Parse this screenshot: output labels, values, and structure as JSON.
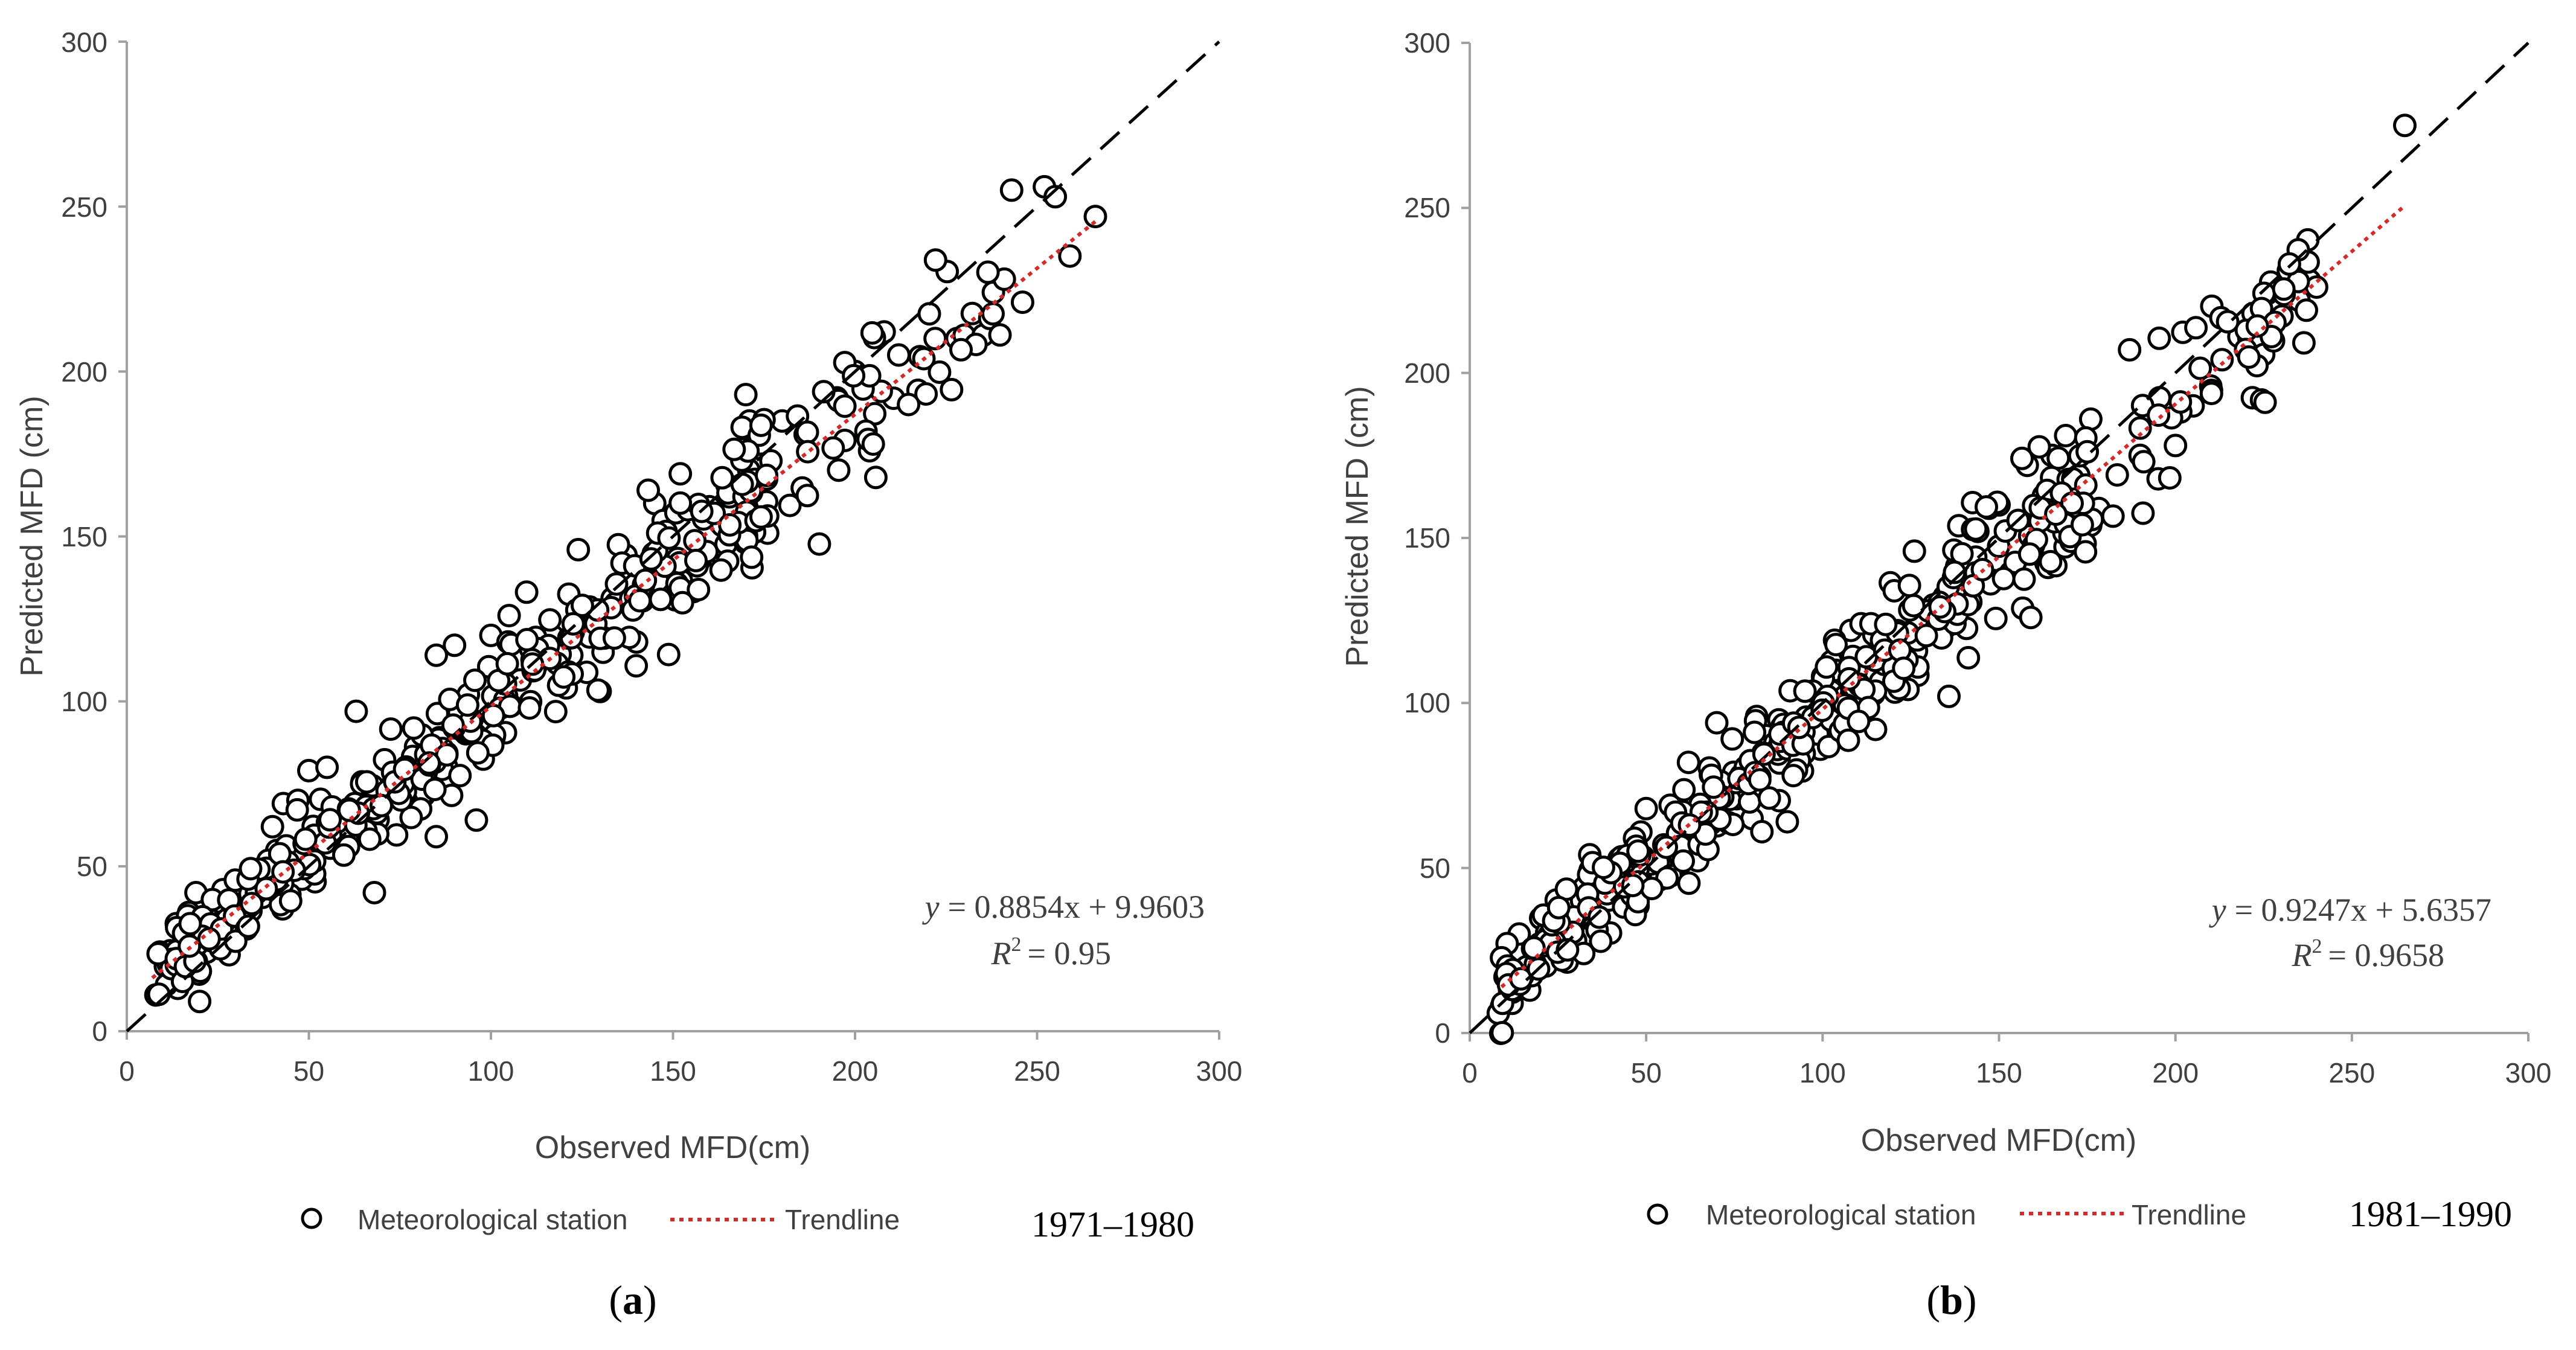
{
  "chart_data": [
    {
      "type": "scatter",
      "panel_label": "a",
      "xlabel": "Observed MFD(cm)",
      "ylabel": "Predicted MFD (cm)",
      "xlim": [
        0,
        300
      ],
      "ylim": [
        0,
        300
      ],
      "xticks": [
        "0",
        "50",
        "100",
        "150",
        "200",
        "250",
        "300"
      ],
      "yticks": [
        "0",
        "50",
        "100",
        "150",
        "200",
        "250",
        "300"
      ],
      "reference_line": {
        "slope": 1,
        "intercept": 0,
        "style": "dashed",
        "color": "#000000"
      },
      "trendline": {
        "slope": 0.8854,
        "intercept": 9.9603,
        "x_range": [
          7,
          267
        ],
        "color": "#d42a2a",
        "style": "dotted"
      },
      "equation_text": "= 0.8854x + 9.9603",
      "r2_text": "= 0.95",
      "legend": {
        "marker_label": "Meteorological station",
        "line_label": "Trendline",
        "period": "1971–1980"
      },
      "series": [
        {
          "name": "Meteorological station",
          "seed": 11,
          "count": 430,
          "fixed_points": [
            [
              8,
              11
            ],
            [
              12,
              20
            ],
            [
              14,
              13
            ],
            [
              17,
              36
            ],
            [
              19,
              42
            ],
            [
              20,
              9
            ],
            [
              22,
              24
            ],
            [
              27,
              30
            ],
            [
              30,
              42
            ],
            [
              35,
              48
            ],
            [
              40,
              62
            ],
            [
              43,
              69
            ],
            [
              47,
              70
            ],
            [
              50,
              79
            ],
            [
              55,
              80
            ],
            [
              63,
              97
            ],
            [
              68,
              42
            ],
            [
              85,
              59
            ],
            [
              85,
              114
            ],
            [
              90,
              117
            ],
            [
              96,
              64
            ],
            [
              100,
              120
            ],
            [
              105,
              126
            ],
            [
              124,
              146
            ],
            [
              130,
              103
            ],
            [
              140,
              118
            ],
            [
              145,
              160
            ],
            [
              152,
              169
            ],
            [
              160,
              159
            ],
            [
              170,
              193
            ],
            [
              171,
              185
            ],
            [
              176,
              151
            ],
            [
              180,
              185
            ],
            [
              195,
              192
            ],
            [
              200,
              200
            ],
            [
              204,
              176
            ],
            [
              208,
              212
            ],
            [
              212,
              205
            ],
            [
              222,
              210
            ],
            [
              228,
              210
            ],
            [
              230,
              211
            ],
            [
              238,
              224
            ],
            [
              241,
              228
            ],
            [
              243,
              255
            ],
            [
              246,
              221
            ],
            [
              252,
              256
            ],
            [
              255,
              253
            ],
            [
              259,
              235
            ],
            [
              266,
              247
            ]
          ]
        }
      ]
    },
    {
      "type": "scatter",
      "panel_label": "b",
      "xlabel": "Observed MFD(cm)",
      "ylabel": "Predicted MFD (cm)",
      "xlim": [
        0,
        300
      ],
      "ylim": [
        0,
        300
      ],
      "xticks": [
        "0",
        "50",
        "100",
        "150",
        "200",
        "250",
        "300"
      ],
      "yticks": [
        "0",
        "50",
        "100",
        "150",
        "200",
        "250",
        "300"
      ],
      "reference_line": {
        "slope": 1,
        "intercept": 0,
        "style": "dashed",
        "color": "#000000"
      },
      "trendline": {
        "slope": 0.9247,
        "intercept": 5.6357,
        "x_range": [
          9,
          265
        ],
        "color": "#d42a2a",
        "style": "dotted"
      },
      "equation_text": "= 0.9247x + 5.6357",
      "r2_text": "= 0.9658",
      "legend": {
        "marker_label": "Meteorological station",
        "line_label": "Trendline",
        "period": "1981–1990"
      },
      "series": [
        {
          "name": "Meteorological station",
          "seed": 29,
          "count": 470,
          "fixed_points": [
            [
              9,
              8
            ],
            [
              10,
              17
            ],
            [
              12,
              9
            ],
            [
              14,
              30
            ],
            [
              17,
              13
            ],
            [
              20,
              26
            ],
            [
              25,
              34
            ],
            [
              30,
              28
            ],
            [
              34,
              54
            ],
            [
              40,
              48
            ],
            [
              46,
              42
            ],
            [
              50,
              68
            ],
            [
              55,
              57
            ],
            [
              62,
              82
            ],
            [
              70,
              94
            ],
            [
              80,
              65
            ],
            [
              90,
              64
            ],
            [
              100,
              108
            ],
            [
              108,
              122
            ],
            [
              115,
              92
            ],
            [
              126,
              146
            ],
            [
              135,
              123
            ],
            [
              144,
              152
            ],
            [
              150,
              160
            ],
            [
              158,
              172
            ],
            [
              165,
              175
            ],
            [
              170,
              178
            ],
            [
              176,
              186
            ],
            [
              187,
              207
            ],
            [
              190,
              175
            ],
            [
              196,
              190
            ],
            [
              200,
              178
            ],
            [
              205,
              190
            ],
            [
              210,
              196
            ],
            [
              218,
              211
            ],
            [
              222,
              218
            ],
            [
              226,
              224
            ],
            [
              232,
              231
            ],
            [
              235,
              222
            ],
            [
              238,
              228
            ],
            [
              240,
              226
            ],
            [
              265,
              275
            ]
          ]
        }
      ]
    }
  ]
}
